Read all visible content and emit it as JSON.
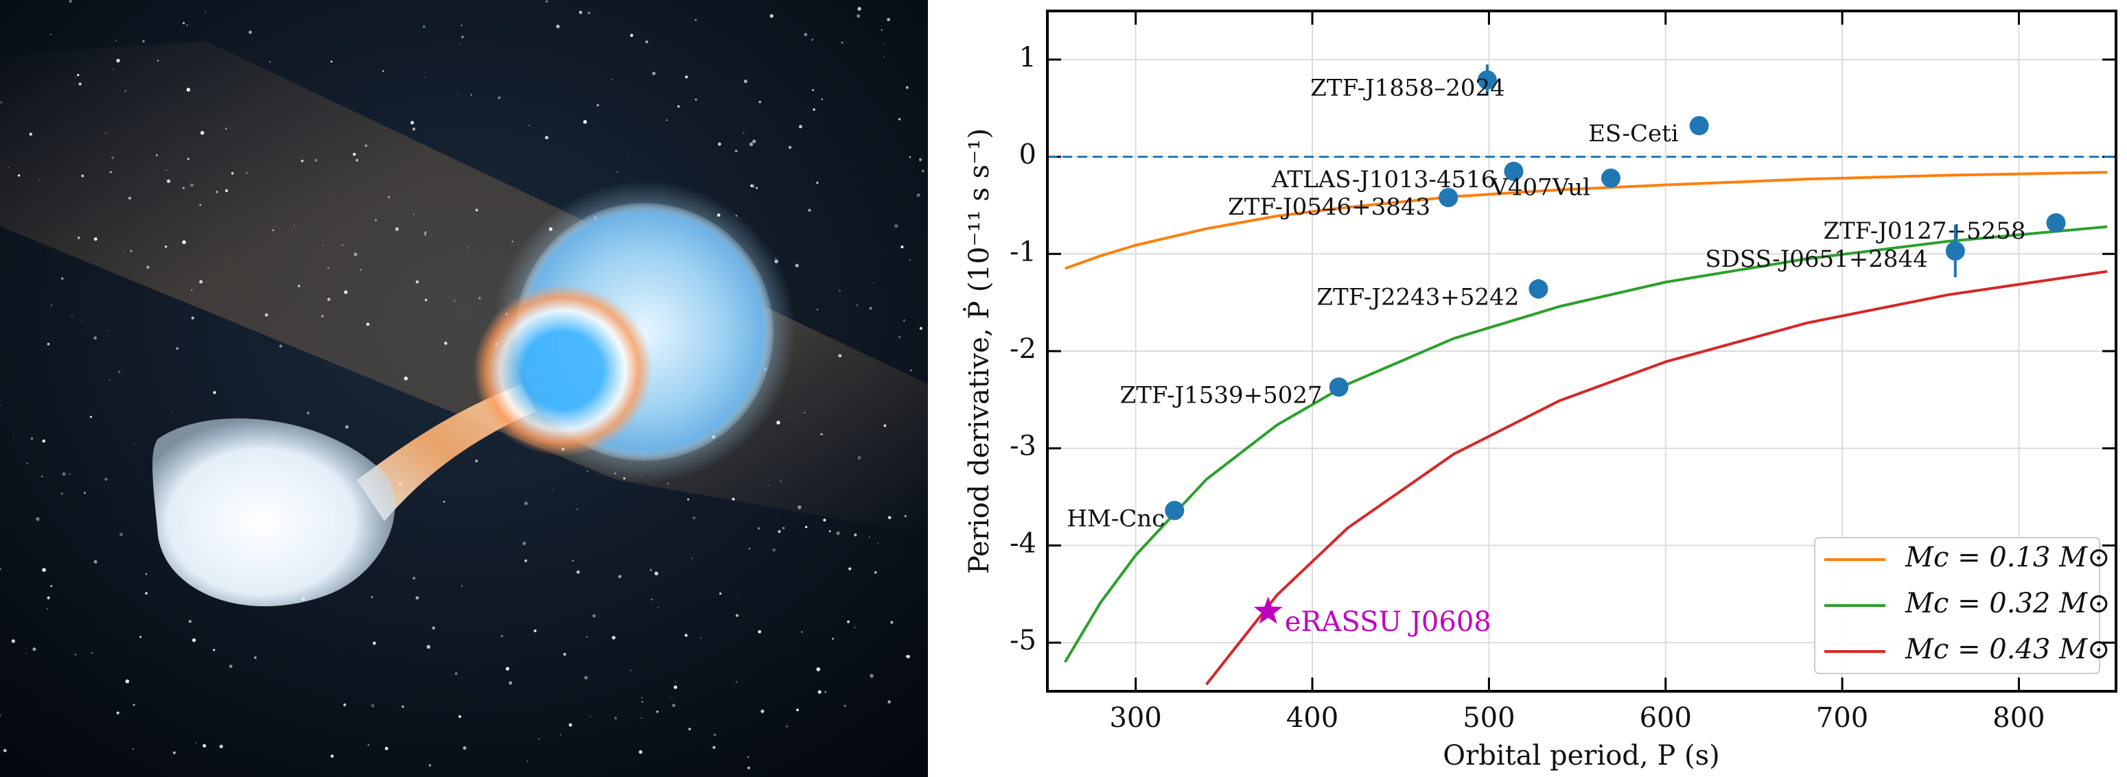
{
  "chart_data": {
    "type": "scatter",
    "xlabel": "Orbital period, P (s)",
    "ylabel": "Period derivative, Ṗ (10⁻¹¹ s s⁻¹)",
    "xlim": [
      250,
      855
    ],
    "ylim": [
      -5.5,
      1.5
    ],
    "xticks": [
      300,
      400,
      500,
      600,
      700,
      800
    ],
    "yticks": [
      -5,
      -4,
      -3,
      -2,
      -1,
      0,
      1
    ],
    "grid": true,
    "legend": "lower right",
    "reference_line": {
      "y": 0,
      "color": "#1f77b4",
      "style": "dashed"
    },
    "points": {
      "color": "#1f77b4",
      "labels": [
        "ZTF-J1858–2024",
        "ES-Ceti",
        "ATLAS-J1013-4516",
        "V407Vul",
        "ZTF-J0546+3843",
        "ZTF-J0127+5258",
        "SDSS-J0651+2844",
        "ZTF-J2243+5242",
        "ZTF-J1539+5027",
        "HM-Cnc"
      ],
      "x": [
        499,
        619,
        514,
        569,
        477,
        821,
        764,
        528,
        415,
        322
      ],
      "y": [
        0.79,
        0.32,
        -0.15,
        -0.22,
        -0.42,
        -0.68,
        -0.97,
        -1.36,
        -2.37,
        -3.64
      ],
      "yerr": [
        0.16,
        0.03,
        0.03,
        0.03,
        0.03,
        0.03,
        0.27,
        0.1,
        0.03,
        0.03
      ]
    },
    "highlight": {
      "name": "eRASSU J0608",
      "x": 375,
      "y": -4.68,
      "color": "#c000c0",
      "marker": "star"
    },
    "curves": {
      "x": [
        260,
        280,
        300,
        340,
        380,
        420,
        480,
        540,
        600,
        680,
        760,
        850
      ],
      "series": [
        {
          "name": "Mc = 0.13 M⊙",
          "color": "#ff7f0e",
          "values": [
            -1.15,
            -1.02,
            -0.91,
            -0.74,
            -0.61,
            -0.52,
            -0.41,
            -0.34,
            -0.29,
            -0.23,
            -0.19,
            -0.16
          ]
        },
        {
          "name": "Mc = 0.32 M⊙",
          "color": "#2ca02c",
          "values": [
            -5.2,
            -4.59,
            -4.1,
            -3.32,
            -2.76,
            -2.34,
            -1.87,
            -1.54,
            -1.29,
            -1.05,
            -0.87,
            -0.72
          ]
        },
        {
          "name": "Mc = 0.43 M⊙",
          "color": "#d62728",
          "values": [
            null,
            null,
            null,
            -5.43,
            -4.51,
            -3.82,
            -3.06,
            -2.51,
            -2.11,
            -1.71,
            -1.42,
            -1.18
          ]
        }
      ]
    }
  }
}
